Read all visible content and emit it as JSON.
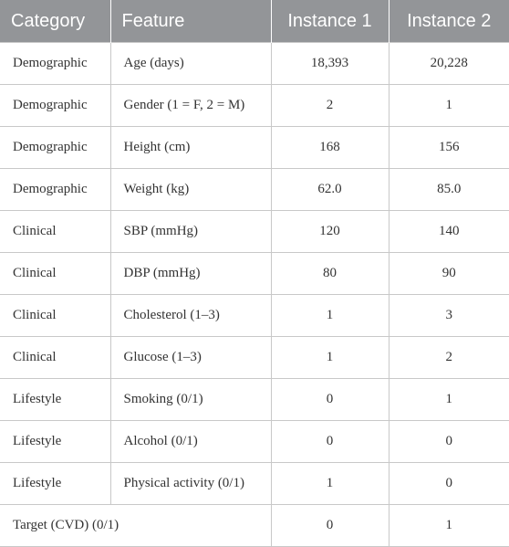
{
  "table": {
    "header": [
      "Category",
      "Feature",
      "Instance 1",
      "Instance 2"
    ],
    "groups": [
      {
        "category": "Demographic",
        "rows": [
          [
            "Age (days)",
            "18,393",
            "20,228"
          ],
          [
            "Gender (1 = F, 2 = M)",
            "2",
            "1"
          ],
          [
            "Height (cm)",
            "168",
            "156"
          ],
          [
            "Weight (kg)",
            "62.0",
            "85.0"
          ]
        ]
      },
      {
        "category": "Clinical",
        "rows": [
          [
            "SBP (mmHg)",
            "120",
            "140"
          ],
          [
            "DBP (mmHg)",
            "80",
            "90"
          ],
          [
            "Cholesterol (1–3)",
            "1",
            "3"
          ],
          [
            "Glucose (1–3)",
            "1",
            "2"
          ]
        ]
      },
      {
        "category": "Lifestyle",
        "rows": [
          [
            "Smoking (0/1)",
            "0",
            "1"
          ],
          [
            "Alcohol (0/1)",
            "0",
            "0"
          ],
          [
            "Physical activity (0/1)",
            "1",
            "0"
          ]
        ]
      },
      {
        "category": "Target (CVD) (0/1)",
        "rows": [
          [
            "0",
            "1"
          ]
        ]
      }
    ]
  }
}
